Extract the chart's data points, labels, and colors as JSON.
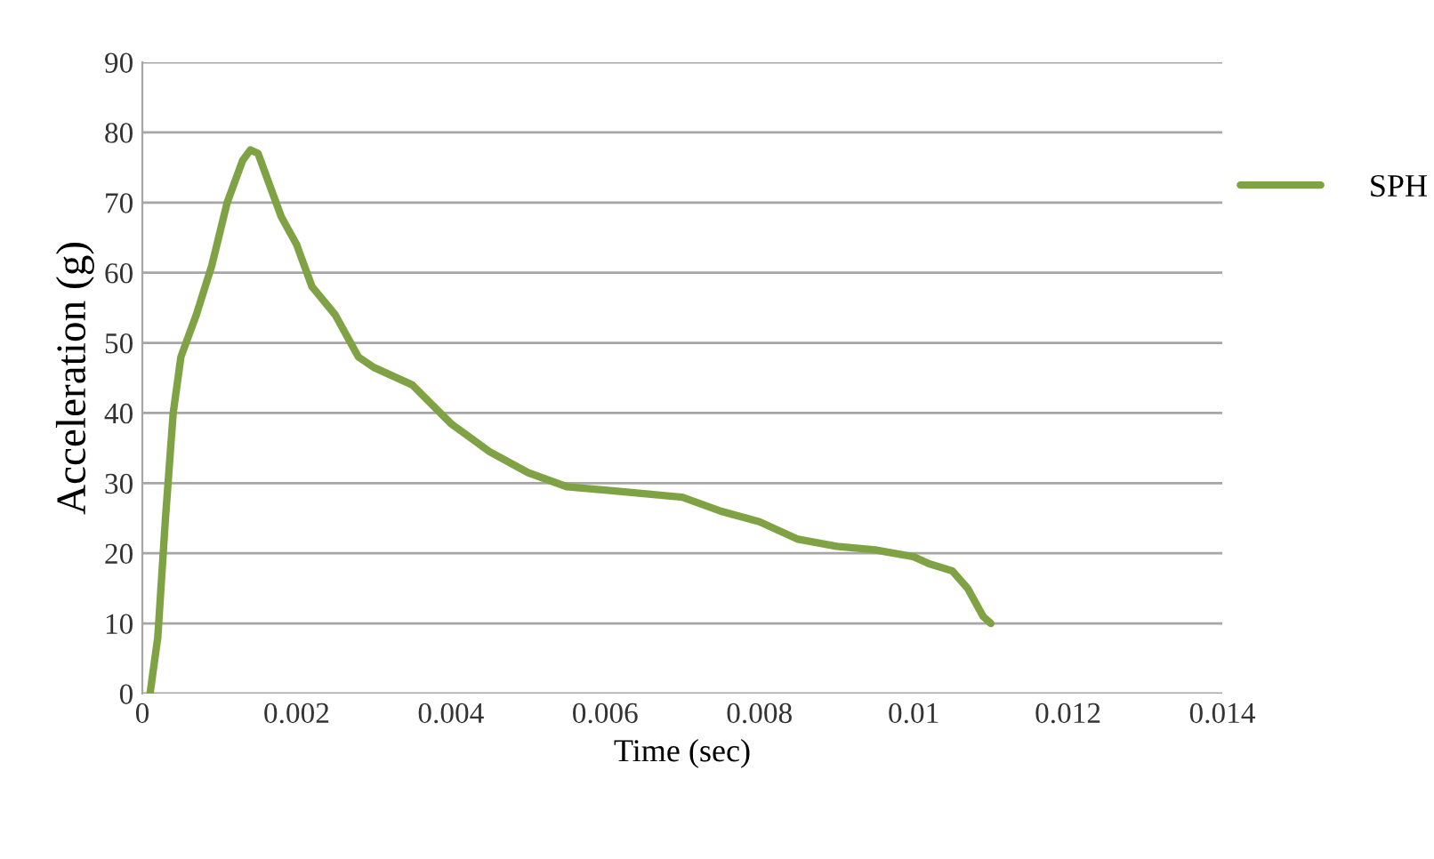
{
  "chart_data": {
    "type": "line",
    "xlabel": "Time (sec)",
    "ylabel": "Acceleration (g)",
    "xlim": [
      0,
      0.014
    ],
    "xticks": [
      0,
      0.002,
      0.004,
      0.006,
      0.008,
      0.01,
      0.012,
      0.014
    ],
    "ylim": [
      0,
      90
    ],
    "yticks": [
      0,
      10,
      20,
      30,
      40,
      50,
      60,
      70,
      80,
      90
    ],
    "grid": "y",
    "legend": "right",
    "marker": "none",
    "line_style": "solid",
    "series": [
      {
        "name": "SPH",
        "color": "#7fa344",
        "x": [
          0.0001,
          0.0002,
          0.0003,
          0.0004,
          0.0005,
          0.0007,
          0.0009,
          0.0011,
          0.0013,
          0.0014,
          0.0015,
          0.0016,
          0.0018,
          0.002,
          0.0022,
          0.0025,
          0.0028,
          0.003,
          0.0035,
          0.004,
          0.0045,
          0.005,
          0.0055,
          0.006,
          0.0065,
          0.007,
          0.0075,
          0.008,
          0.0085,
          0.009,
          0.0095,
          0.01,
          0.0102,
          0.0105,
          0.0107,
          0.0109,
          0.011
        ],
        "values": [
          0,
          8,
          25,
          40,
          48,
          54,
          61,
          70,
          76,
          77.5,
          77,
          74,
          68,
          64,
          58,
          54,
          48,
          46.5,
          44,
          38.5,
          34.5,
          31.5,
          29.5,
          29,
          28.5,
          28,
          26,
          24.5,
          22,
          21,
          20.5,
          19.5,
          18.5,
          17.5,
          15,
          11,
          10
        ]
      }
    ]
  }
}
